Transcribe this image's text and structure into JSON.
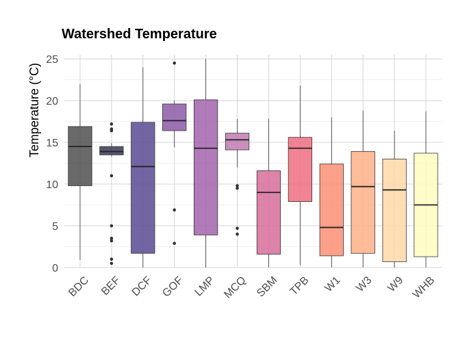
{
  "chart_data": {
    "type": "boxplot",
    "title": "Watershed Temperature",
    "xlabel": "",
    "ylabel": "Temperature (°C)",
    "ylim": [
      0,
      25.5
    ],
    "yticks": [
      0,
      5,
      10,
      15,
      20,
      25
    ],
    "grid": true,
    "legend": "none",
    "categories": [
      "BDC",
      "BEF",
      "DCF",
      "GOF",
      "LMP",
      "MCQ",
      "SBM",
      "TPB",
      "W1",
      "W3",
      "W9",
      "WHB"
    ],
    "boxes": [
      {
        "name": "BDC",
        "min": 0.9,
        "q1": 9.8,
        "median": 14.5,
        "q3": 16.9,
        "max": 22.0,
        "outliers": [],
        "color": "#4f4f4f"
      },
      {
        "name": "BEF",
        "min": 13.3,
        "q1": 13.5,
        "median": 13.9,
        "q3": 14.5,
        "max": 14.9,
        "outliers": [
          17.2,
          16.6,
          16.4,
          11.0,
          5.0,
          3.5,
          3.2,
          1.0,
          0.5
        ],
        "color": "#3b3a57"
      },
      {
        "name": "DCF",
        "min": 0.0,
        "q1": 1.7,
        "median": 12.1,
        "q3": 17.4,
        "max": 24.0,
        "outliers": [],
        "color": "#5b4a93"
      },
      {
        "name": "GOF",
        "min": 14.4,
        "q1": 16.4,
        "median": 17.6,
        "q3": 19.6,
        "max": 20.0,
        "outliers": [
          24.5,
          6.9,
          2.9
        ],
        "color": "#8c5aa8"
      },
      {
        "name": "LMP",
        "min": 0.0,
        "q1": 3.9,
        "median": 14.3,
        "q3": 20.1,
        "max": 25.0,
        "outliers": [],
        "color": "#a363ab"
      },
      {
        "name": "MCQ",
        "min": 12.0,
        "q1": 14.1,
        "median": 15.3,
        "q3": 16.1,
        "max": 17.8,
        "outliers": [
          9.8,
          9.5,
          4.7,
          4.0
        ],
        "color": "#c07bb2"
      },
      {
        "name": "SBM",
        "min": 0.0,
        "q1": 1.6,
        "median": 9.0,
        "q3": 11.6,
        "max": 17.8,
        "outliers": [],
        "color": "#d76d9b"
      },
      {
        "name": "TPB",
        "min": 0.3,
        "q1": 7.9,
        "median": 14.3,
        "q3": 15.6,
        "max": 21.8,
        "outliers": [],
        "color": "#ee6f81"
      },
      {
        "name": "W1",
        "min": 0.0,
        "q1": 1.4,
        "median": 4.8,
        "q3": 12.4,
        "max": 18.0,
        "outliers": [],
        "color": "#fb8f76"
      },
      {
        "name": "W3",
        "min": 0.0,
        "q1": 1.7,
        "median": 9.7,
        "q3": 13.9,
        "max": 18.8,
        "outliers": [],
        "color": "#feb087"
      },
      {
        "name": "W9",
        "min": 0.0,
        "q1": 0.7,
        "median": 9.3,
        "q3": 13.0,
        "max": 16.4,
        "outliers": [],
        "color": "#ffd8a8"
      },
      {
        "name": "WHB",
        "min": 0.0,
        "q1": 1.3,
        "median": 7.5,
        "q3": 13.7,
        "max": 18.7,
        "outliers": [],
        "color": "#fcfdbf"
      }
    ]
  }
}
